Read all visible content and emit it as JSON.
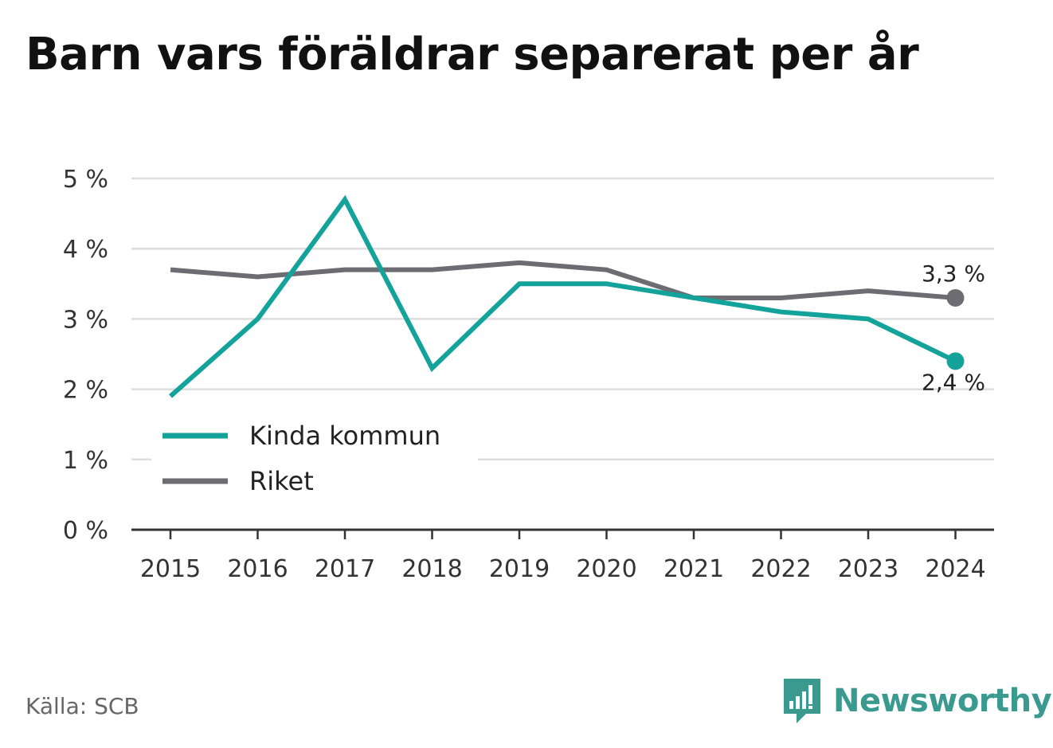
{
  "title": "Barn vars föräldrar separerat per år",
  "source": "Källa: SCB",
  "brand": "Newsworthy",
  "colors": {
    "kinda": "#13a39a",
    "riket": "#6d6c72",
    "grid": "#dddddd",
    "axis": "#333333",
    "brand": "#3a9a90"
  },
  "chart_data": {
    "type": "line",
    "title": "Barn vars föräldrar separerat per år",
    "x": [
      "2015",
      "2016",
      "2017",
      "2018",
      "2019",
      "2020",
      "2021",
      "2022",
      "2023",
      "2024"
    ],
    "series": [
      {
        "name": "Kinda kommun",
        "values": [
          1.9,
          3.0,
          4.7,
          2.3,
          3.5,
          3.5,
          3.3,
          3.1,
          3.0,
          2.4
        ],
        "end_label": "2,4 %"
      },
      {
        "name": "Riket",
        "values": [
          3.7,
          3.6,
          3.7,
          3.7,
          3.8,
          3.7,
          3.3,
          3.3,
          3.4,
          3.3
        ],
        "end_label": "3,3 %"
      }
    ],
    "ylim": [
      0,
      5
    ],
    "yticks": [
      0,
      1,
      2,
      3,
      4,
      5
    ],
    "ytick_labels": [
      "0 %",
      "1 %",
      "2 %",
      "3 %",
      "4 %",
      "5 %"
    ],
    "grid": true,
    "legend": "bottom-left"
  }
}
